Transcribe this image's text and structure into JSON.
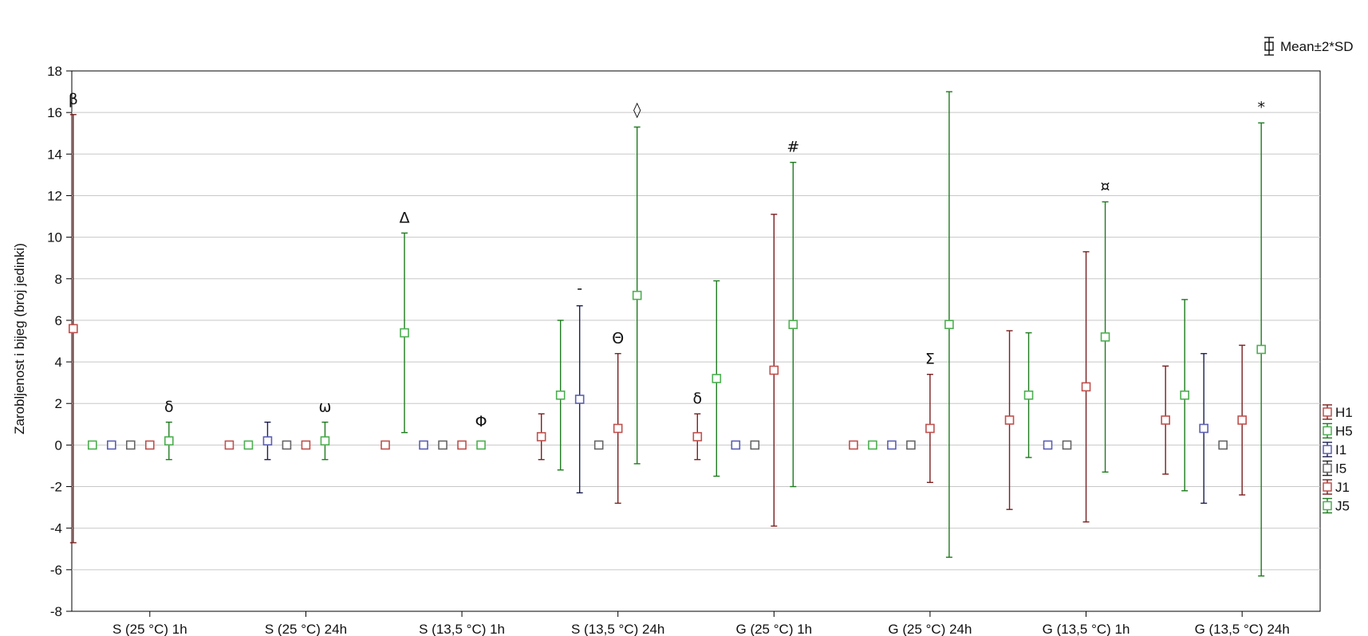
{
  "chart_data": {
    "type": "scatter",
    "ylabel": "Zarobljenost i bijeg (broj jedinki)",
    "ylim": [
      -8,
      18
    ],
    "yticks": [
      -8,
      -6,
      -4,
      -2,
      0,
      2,
      4,
      6,
      8,
      10,
      12,
      14,
      16,
      18
    ],
    "grid": true,
    "error_legend": "Mean±2*SD",
    "legend_position": "right",
    "categories": [
      "S (25 °C) 1h",
      "S (25 °C) 24h",
      "S (13,5 °C) 1h",
      "S (13,5 °C) 24h",
      "G (25 °C) 1h",
      "G (25 °C) 24h",
      "G (13,5 °C) 1h",
      "G (13,5 °C) 24h"
    ],
    "series": [
      {
        "name": "H1",
        "color": "#c0504d",
        "whisker": "#7a1f1f",
        "mean": [
          5.6,
          0,
          0,
          0.4,
          0.4,
          0,
          1.2,
          1.2
        ],
        "lower": [
          -4.7,
          0,
          0,
          -0.7,
          -0.7,
          0,
          -3.1,
          -1.4
        ],
        "upper": [
          15.9,
          0,
          0,
          1.5,
          1.5,
          0,
          5.5,
          3.8
        ]
      },
      {
        "name": "H5",
        "color": "#4caf50",
        "whisker": "#1e7b1e",
        "mean": [
          0,
          0,
          5.4,
          2.4,
          3.2,
          0,
          2.4,
          2.4
        ],
        "lower": [
          0,
          0,
          0.6,
          -1.2,
          -1.5,
          0,
          -0.6,
          -2.2
        ],
        "upper": [
          0,
          0,
          10.2,
          6.0,
          7.9,
          0,
          5.4,
          7.0
        ]
      },
      {
        "name": "I1",
        "color": "#5b5fb5",
        "whisker": "#1c1f4f",
        "mean": [
          0,
          0.2,
          0,
          2.2,
          0,
          0,
          0,
          0.8
        ],
        "lower": [
          0,
          -0.7,
          0,
          -2.3,
          0,
          0,
          0,
          -2.8
        ],
        "upper": [
          0,
          1.1,
          0,
          6.7,
          0,
          0,
          0,
          4.4
        ]
      },
      {
        "name": "I5",
        "color": "#666666",
        "whisker": "#222222",
        "mean": [
          0,
          0,
          0,
          0,
          0,
          0,
          0,
          0
        ],
        "lower": [
          0,
          0,
          0,
          0,
          0,
          0,
          0,
          0
        ],
        "upper": [
          0,
          0,
          0,
          0,
          0,
          0,
          0,
          0
        ]
      },
      {
        "name": "J1",
        "color": "#c0504d",
        "whisker": "#7a1f1f",
        "mean": [
          0,
          0,
          0,
          0.8,
          3.6,
          0.8,
          2.8,
          1.2
        ],
        "lower": [
          0,
          0,
          0,
          -2.8,
          -3.9,
          -1.8,
          -3.7,
          -2.4
        ],
        "upper": [
          0,
          0,
          0,
          4.4,
          11.1,
          3.4,
          9.3,
          4.8
        ]
      },
      {
        "name": "J5",
        "color": "#4caf50",
        "whisker": "#1e7b1e",
        "mean": [
          0.2,
          0.2,
          0,
          7.2,
          5.8,
          5.8,
          5.2,
          4.6
        ],
        "lower": [
          -0.7,
          -0.7,
          0,
          -0.9,
          -2.0,
          -5.4,
          -1.3,
          -6.3
        ],
        "upper": [
          1.1,
          1.1,
          0,
          15.3,
          13.6,
          17.0,
          11.7,
          15.5
        ]
      }
    ],
    "annotations": [
      {
        "text": "β",
        "category": 0,
        "series": "H1",
        "y": 16.4
      },
      {
        "text": "δ",
        "category": 0,
        "series": "J5",
        "y": 1.6
      },
      {
        "text": "ω",
        "category": 1,
        "series": "J5",
        "y": 1.6
      },
      {
        "text": "Δ",
        "category": 2,
        "series": "H5",
        "y": 10.7
      },
      {
        "text": "Φ",
        "category": 2,
        "series": "J5",
        "y": 0.9
      },
      {
        "text": "-",
        "category": 3,
        "series": "I1",
        "y": 7.3
      },
      {
        "text": "Θ",
        "category": 3,
        "series": "J1",
        "y": 4.9
      },
      {
        "text": "◊",
        "category": 3,
        "series": "J5",
        "y": 15.9
      },
      {
        "text": "δ",
        "category": 4,
        "series": "H1",
        "y": 2.0
      },
      {
        "text": "#",
        "category": 4,
        "series": "J5",
        "y": 14.1
      },
      {
        "text": "Σ",
        "category": 5,
        "series": "J1",
        "y": 3.9
      },
      {
        "text": "¤",
        "category": 6,
        "series": "J5",
        "y": 12.2
      },
      {
        "text": "*",
        "category": 7,
        "series": "J5",
        "y": 16.0
      }
    ]
  }
}
